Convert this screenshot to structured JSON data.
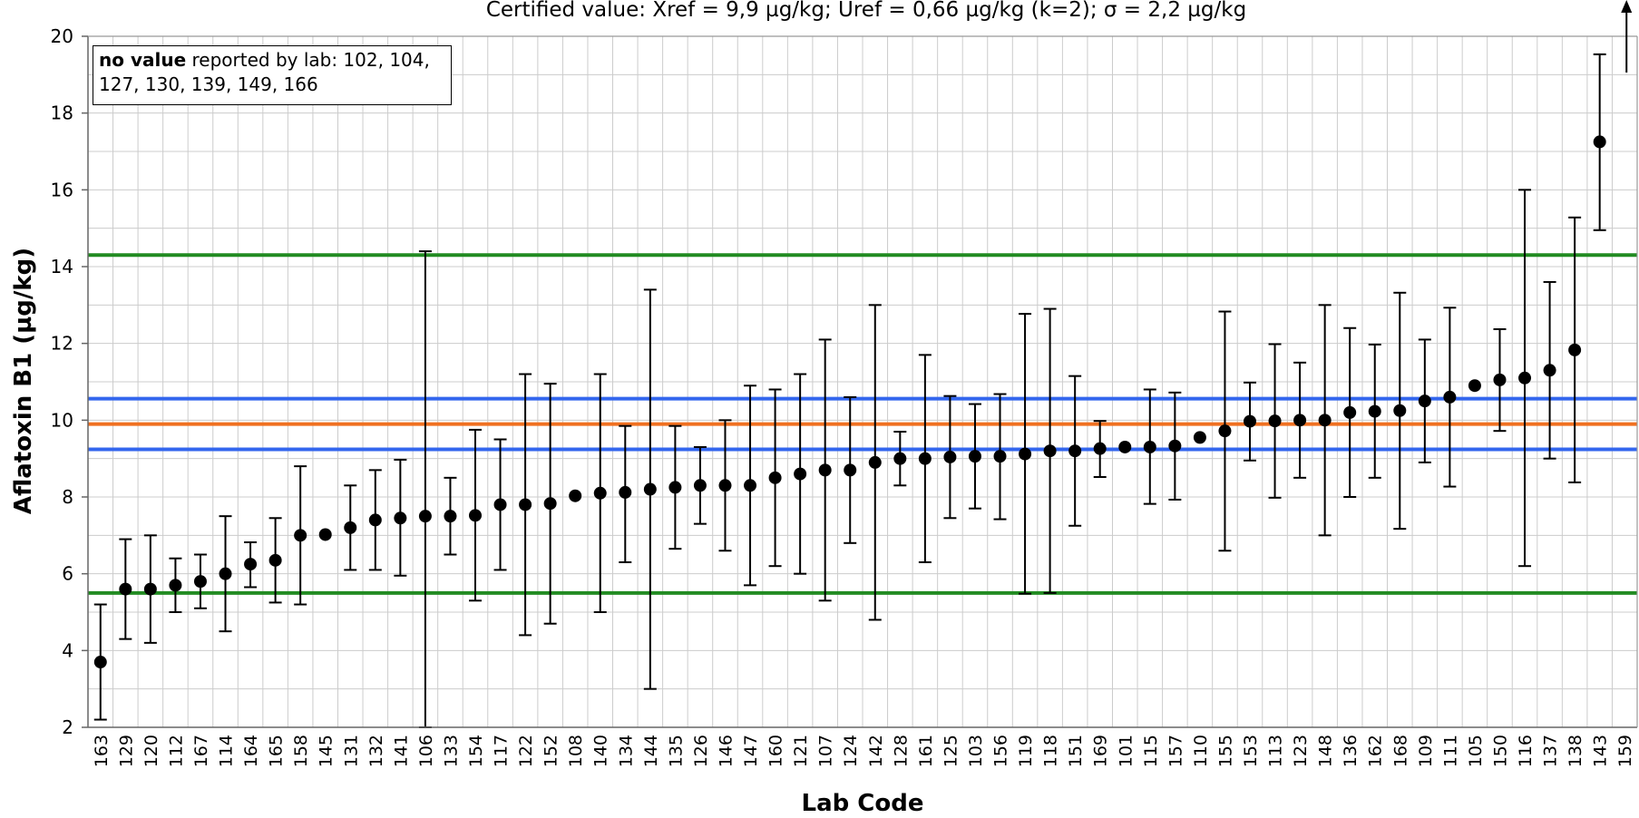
{
  "chart_data": {
    "type": "scatter",
    "title": "Certified value: Xref = 9,9 µg/kg; Uref = 0,66 µg/kg (k=2); σ = 2,2 µg/kg",
    "xlabel": "Lab Code",
    "ylabel": "Aflatoxin B1 (µg/kg)",
    "ylim": [
      2,
      20
    ],
    "yticks": [
      2,
      4,
      6,
      8,
      10,
      12,
      14,
      16,
      18,
      20
    ],
    "grid": true,
    "reference_lines": [
      {
        "name": "Xref + 2σ",
        "value": 14.3,
        "color": "#228B22"
      },
      {
        "name": "Xref + Uref",
        "value": 10.56,
        "color": "#3366EE"
      },
      {
        "name": "Xref",
        "value": 9.9,
        "color": "#F07020"
      },
      {
        "name": "Xref - Uref",
        "value": 9.24,
        "color": "#3366EE"
      },
      {
        "name": "Xref - 2σ",
        "value": 5.5,
        "color": "#228B22"
      }
    ],
    "categories": [
      "163",
      "129",
      "120",
      "112",
      "167",
      "114",
      "164",
      "165",
      "158",
      "145",
      "131",
      "132",
      "141",
      "106",
      "133",
      "154",
      "117",
      "122",
      "152",
      "108",
      "140",
      "134",
      "144",
      "135",
      "126",
      "146",
      "147",
      "160",
      "121",
      "107",
      "124",
      "142",
      "128",
      "161",
      "125",
      "103",
      "156",
      "119",
      "118",
      "151",
      "169",
      "101",
      "115",
      "157",
      "110",
      "155",
      "153",
      "113",
      "123",
      "148",
      "136",
      "162",
      "168",
      "109",
      "111",
      "105",
      "150",
      "116",
      "137",
      "138",
      "143",
      "159"
    ],
    "values": [
      3.7,
      5.6,
      5.6,
      5.7,
      5.8,
      6.0,
      6.25,
      6.35,
      7.0,
      7.02,
      7.2,
      7.4,
      7.45,
      7.5,
      7.5,
      7.52,
      7.8,
      7.8,
      7.83,
      8.03,
      8.1,
      8.12,
      8.2,
      8.25,
      8.3,
      8.3,
      8.3,
      8.5,
      8.6,
      8.7,
      8.7,
      8.9,
      9.0,
      9.0,
      9.04,
      9.06,
      9.06,
      9.12,
      9.2,
      9.2,
      9.26,
      9.3,
      9.3,
      9.33,
      9.55,
      9.72,
      9.97,
      9.98,
      10.0,
      10.0,
      10.2,
      10.23,
      10.25,
      10.5,
      10.6,
      10.9,
      11.05,
      11.1,
      11.3,
      11.83,
      17.25,
      null
    ],
    "error_low": [
      2.2,
      4.3,
      4.2,
      5.0,
      5.1,
      4.5,
      5.65,
      5.25,
      5.2,
      null,
      6.1,
      6.1,
      5.95,
      2.0,
      6.5,
      5.3,
      6.1,
      4.4,
      4.7,
      null,
      5.0,
      6.3,
      3.0,
      6.65,
      7.3,
      6.6,
      5.7,
      6.2,
      6.0,
      5.3,
      6.8,
      4.8,
      8.3,
      6.3,
      7.45,
      7.7,
      7.42,
      5.48,
      5.5,
      7.25,
      8.52,
      null,
      7.82,
      7.93,
      null,
      6.6,
      8.95,
      7.98,
      8.5,
      7.0,
      8.0,
      8.5,
      7.17,
      8.9,
      8.27,
      null,
      9.72,
      6.2,
      9.0,
      8.38,
      14.95,
      null
    ],
    "error_high": [
      5.2,
      6.9,
      7.0,
      6.4,
      6.5,
      7.5,
      6.82,
      7.45,
      8.8,
      null,
      8.3,
      8.7,
      8.97,
      14.4,
      8.5,
      9.75,
      9.5,
      11.2,
      10.95,
      null,
      11.2,
      9.85,
      13.4,
      9.85,
      9.3,
      10.0,
      10.9,
      10.8,
      11.2,
      12.1,
      10.6,
      13.0,
      9.7,
      11.7,
      10.63,
      10.42,
      10.68,
      12.77,
      12.9,
      11.15,
      9.98,
      null,
      10.8,
      10.72,
      null,
      12.83,
      10.98,
      11.98,
      11.5,
      13.0,
      12.4,
      11.97,
      13.32,
      12.1,
      12.93,
      null,
      12.37,
      16.0,
      13.6,
      15.28,
      19.53,
      null
    ],
    "off_scale_high": [
      "159"
    ],
    "note": {
      "bold": "no value",
      "text_line1": " reported by lab: 102, 104,",
      "text_line2": "127, 130, 139, 149, 166"
    }
  }
}
